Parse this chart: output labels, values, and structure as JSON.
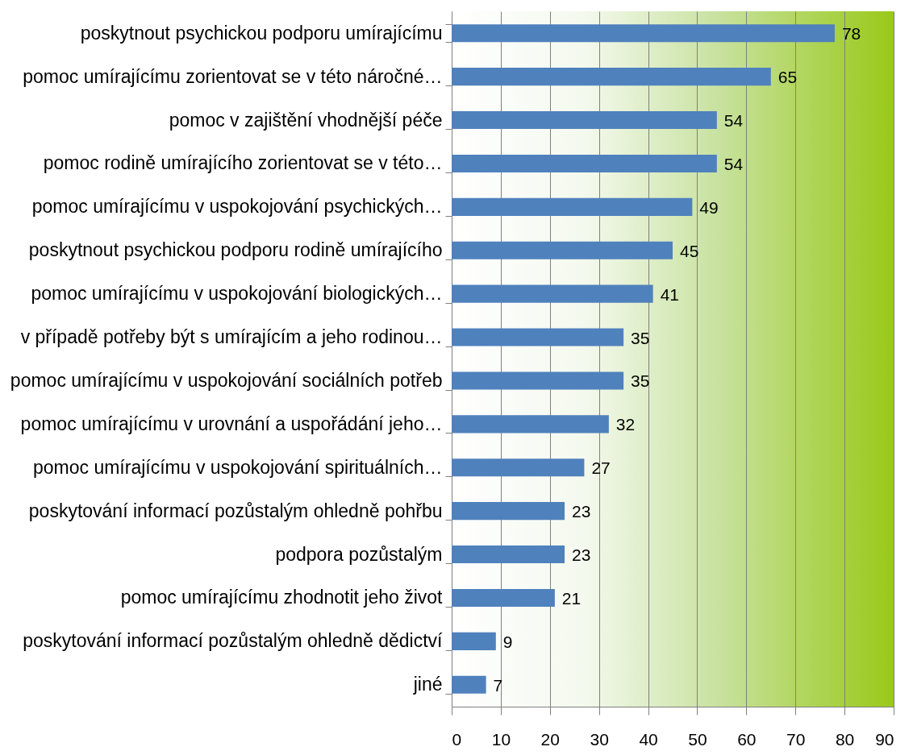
{
  "chart_data": {
    "type": "bar",
    "orientation": "horizontal",
    "categories": [
      "poskytnout psychickou podporu umírajícímu",
      "pomoc umírajícímu zorientovat se v této náročné…",
      "pomoc v zajištění vhodnější péče",
      "pomoc rodině umírajícího zorientovat se v této…",
      "pomoc umírajícímu v uspokojování psychických…",
      "poskytnout psychickou podporu rodině umírajícího",
      "pomoc umírajícímu v uspokojování biologických…",
      "v případě potřeby být s umírajícím a jeho rodinou…",
      "pomoc umírajícímu v uspokojování sociálních potřeb",
      "pomoc umírajícímu v urovnání a uspořádání jeho…",
      "pomoc umírajícímu v uspokojování spirituálních…",
      "poskytování informací pozůstalým ohledně pohřbu",
      "podpora pozůstalým",
      "pomoc umírajícímu zhodnotit jeho život",
      "poskytování informací pozůstalým ohledně dědictví",
      "jiné"
    ],
    "values": [
      78,
      65,
      54,
      54,
      49,
      45,
      41,
      35,
      35,
      32,
      27,
      23,
      23,
      21,
      9,
      7
    ],
    "color": "#4f81bd",
    "xlim": [
      0,
      90
    ],
    "xticks": [
      0,
      10,
      20,
      30,
      40,
      50,
      60,
      70,
      80,
      90
    ],
    "grid": "x",
    "data_labels": true
  }
}
